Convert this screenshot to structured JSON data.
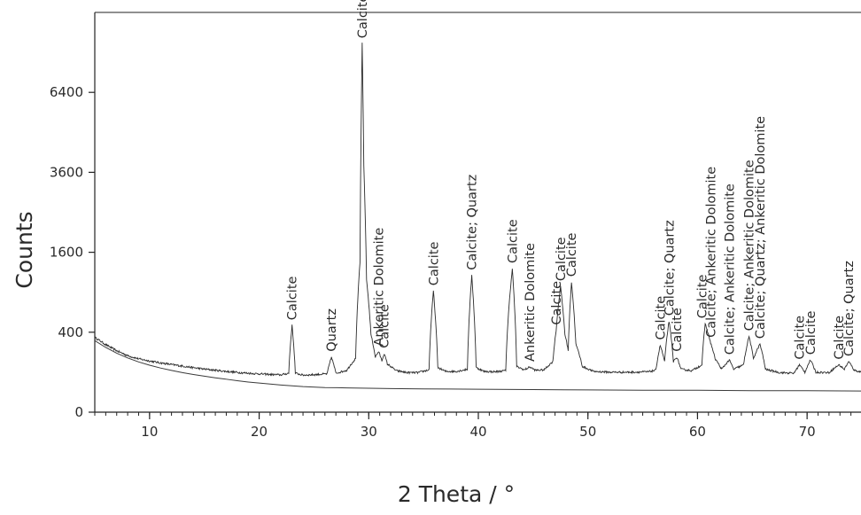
{
  "chart_data": {
    "type": "line",
    "xlabel": "2 Theta / °",
    "ylabel": "Counts",
    "xlim": [
      5,
      75
    ],
    "y_scale": "sqrt",
    "ylim": [
      0,
      10000
    ],
    "x_ticks": [
      10,
      20,
      30,
      40,
      50,
      60,
      70
    ],
    "x_minor_step": 1,
    "y_ticks": [
      0,
      400,
      1600,
      3600,
      6400
    ],
    "grid": false,
    "legend": "none",
    "colors": {
      "trace": "#2b2b2b",
      "background_curve": "#3a3a3a",
      "axis": "#222222"
    },
    "series": [
      {
        "role": "measured_pattern",
        "points": [
          [
            5,
            350
          ],
          [
            6,
            285
          ],
          [
            7,
            236
          ],
          [
            8,
            200
          ],
          [
            9,
            178
          ],
          [
            10,
            164
          ],
          [
            11,
            152
          ],
          [
            12,
            142
          ],
          [
            13,
            133
          ],
          [
            14,
            124
          ],
          [
            15,
            116
          ],
          [
            16,
            110
          ],
          [
            17,
            104
          ],
          [
            18,
            99
          ],
          [
            19,
            95
          ],
          [
            20,
            92
          ],
          [
            21,
            89
          ],
          [
            22,
            87
          ],
          [
            22.7,
            95
          ],
          [
            23.0,
            470
          ],
          [
            23.3,
            95
          ],
          [
            24,
            86
          ],
          [
            25,
            88
          ],
          [
            26.2,
            92
          ],
          [
            26.6,
            190
          ],
          [
            27.0,
            95
          ],
          [
            28,
            110
          ],
          [
            28.8,
            180
          ],
          [
            29.2,
            1400
          ],
          [
            29.4,
            8500
          ],
          [
            29.55,
            3800
          ],
          [
            29.8,
            1100
          ],
          [
            30.2,
            380
          ],
          [
            30.6,
            190
          ],
          [
            30.9,
            230
          ],
          [
            31.2,
            165
          ],
          [
            31.4,
            215
          ],
          [
            31.7,
            145
          ],
          [
            32.5,
            108
          ],
          [
            33.5,
            98
          ],
          [
            34.5,
            98
          ],
          [
            35.5,
            112
          ],
          [
            35.9,
            920
          ],
          [
            36.3,
            125
          ],
          [
            37,
            104
          ],
          [
            38,
            104
          ],
          [
            39,
            115
          ],
          [
            39.4,
            1170
          ],
          [
            39.8,
            125
          ],
          [
            40.5,
            104
          ],
          [
            41.5,
            102
          ],
          [
            42.5,
            108
          ],
          [
            43.1,
            1290
          ],
          [
            43.5,
            130
          ],
          [
            44.2,
            112
          ],
          [
            44.7,
            128
          ],
          [
            45.2,
            110
          ],
          [
            46,
            112
          ],
          [
            46.8,
            160
          ],
          [
            47.1,
            420
          ],
          [
            47.5,
            990
          ],
          [
            47.9,
            380
          ],
          [
            48.2,
            240
          ],
          [
            48.5,
            1060
          ],
          [
            48.9,
            290
          ],
          [
            49.5,
            130
          ],
          [
            50.5,
            104
          ],
          [
            52,
            100
          ],
          [
            54,
            100
          ],
          [
            55.5,
            102
          ],
          [
            56.2,
            110
          ],
          [
            56.6,
            280
          ],
          [
            57.0,
            160
          ],
          [
            57.4,
            520
          ],
          [
            57.8,
            160
          ],
          [
            58.1,
            190
          ],
          [
            58.5,
            115
          ],
          [
            59.5,
            108
          ],
          [
            60.4,
            140
          ],
          [
            60.7,
            490
          ],
          [
            61.2,
            300
          ],
          [
            61.6,
            180
          ],
          [
            62.2,
            115
          ],
          [
            62.9,
            170
          ],
          [
            63.3,
            115
          ],
          [
            64.2,
            140
          ],
          [
            64.7,
            360
          ],
          [
            65.1,
            180
          ],
          [
            65.7,
            290
          ],
          [
            66.2,
            115
          ],
          [
            67.5,
            98
          ],
          [
            68.8,
            95
          ],
          [
            69.3,
            140
          ],
          [
            69.8,
            100
          ],
          [
            70.3,
            170
          ],
          [
            70.8,
            100
          ],
          [
            72,
            98
          ],
          [
            72.9,
            140
          ],
          [
            73.4,
            115
          ],
          [
            73.8,
            160
          ],
          [
            74.3,
            110
          ],
          [
            75,
            100
          ]
        ]
      },
      {
        "role": "background",
        "points": [
          [
            5,
            320
          ],
          [
            6,
            262
          ],
          [
            7,
            218
          ],
          [
            8,
            184
          ],
          [
            9,
            158
          ],
          [
            10,
            138
          ],
          [
            11,
            122
          ],
          [
            12,
            109
          ],
          [
            13,
            98
          ],
          [
            14,
            89
          ],
          [
            15,
            81
          ],
          [
            16,
            74
          ],
          [
            17,
            68
          ],
          [
            18,
            62
          ],
          [
            19,
            57
          ],
          [
            20,
            53
          ],
          [
            22,
            46
          ],
          [
            24,
            41
          ],
          [
            26,
            38
          ],
          [
            28,
            37
          ],
          [
            30,
            36
          ],
          [
            32,
            35
          ],
          [
            35,
            34
          ],
          [
            40,
            33
          ],
          [
            45,
            32
          ],
          [
            50,
            31
          ],
          [
            55,
            30
          ],
          [
            60,
            30
          ],
          [
            65,
            29
          ],
          [
            70,
            29
          ],
          [
            75,
            28
          ]
        ]
      }
    ],
    "annotations": [
      {
        "text": "Calcite",
        "x": 23.0,
        "y": 470
      },
      {
        "text": "Quartz",
        "x": 26.6,
        "y": 190
      },
      {
        "text": "Calcite",
        "x": 29.4,
        "y": 8500
      },
      {
        "text": "Ankeritic Dolomite",
        "x": 30.9,
        "y": 230
      },
      {
        "text": "Calcite",
        "x": 31.4,
        "y": 215
      },
      {
        "text": "Calcite",
        "x": 35.9,
        "y": 920
      },
      {
        "text": "Calcite; Quartz",
        "x": 39.4,
        "y": 1170
      },
      {
        "text": "Calcite",
        "x": 43.1,
        "y": 1290
      },
      {
        "text": "Ankeritic Dolomite",
        "x": 44.7,
        "y": 128
      },
      {
        "text": "Calcite",
        "x": 47.1,
        "y": 420
      },
      {
        "text": "Calcite",
        "x": 47.5,
        "y": 990
      },
      {
        "text": "Calcite",
        "x": 48.5,
        "y": 1060
      },
      {
        "text": "Calcite",
        "x": 56.6,
        "y": 280
      },
      {
        "text": "Calcite; Quartz",
        "x": 57.4,
        "y": 520
      },
      {
        "text": "Calcite",
        "x": 58.1,
        "y": 190
      },
      {
        "text": "Calcite",
        "x": 60.4,
        "y": 490
      },
      {
        "text": "Calcite; Ankeritic Dolomite",
        "x": 61.2,
        "y": 300
      },
      {
        "text": "Calcite; Ankeritic Dolomite",
        "x": 62.9,
        "y": 170
      },
      {
        "text": "Calcite; Ankeritic Dolomite",
        "x": 64.7,
        "y": 360
      },
      {
        "text": "Calcite; Quartz; Ankeritic Dolomite",
        "x": 65.7,
        "y": 290
      },
      {
        "text": "Calcite",
        "x": 69.3,
        "y": 140
      },
      {
        "text": "Calcite",
        "x": 70.3,
        "y": 170
      },
      {
        "text": "Calcite",
        "x": 72.9,
        "y": 140
      },
      {
        "text": "Calcite; Quartz",
        "x": 73.8,
        "y": 160
      }
    ]
  }
}
